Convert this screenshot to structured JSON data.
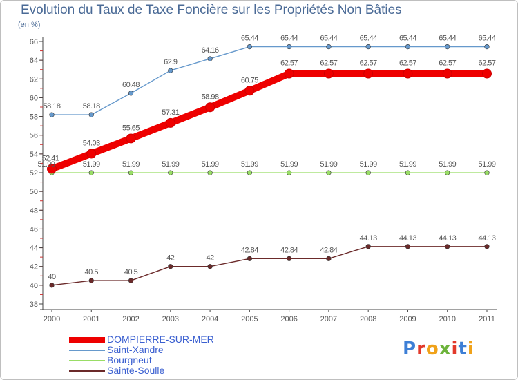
{
  "title": "Evolution du Taux de Taxe Foncière sur les Propriétés Non Bâties",
  "subtitle": "(en %)",
  "logo_text": "Proxiti",
  "logo_colors": [
    "#3d7fd6",
    "#e2392b",
    "#f0a21a",
    "#6cb33a",
    "#e2392b",
    "#3d7fd6",
    "#f0a21a"
  ],
  "chart_data": {
    "type": "line",
    "title": "Evolution du Taux de Taxe Foncière sur les Propriétés Non Bâties",
    "ylabel": "(en %)",
    "xlabel": "",
    "x": [
      "2000",
      "2001",
      "2002",
      "2003",
      "2004",
      "2005",
      "2006",
      "2007",
      "2008",
      "2009",
      "2010",
      "2011"
    ],
    "ylim": [
      38,
      66
    ],
    "yticks": [
      38,
      40,
      42,
      44,
      46,
      48,
      50,
      52,
      54,
      56,
      58,
      60,
      62,
      64,
      66
    ],
    "grid": false,
    "legend_position": "bottom-left",
    "series": [
      {
        "name": "DOMPIERRE-SUR-MER",
        "color": "#ee0000",
        "values": [
          52.41,
          54.03,
          55.65,
          57.31,
          58.98,
          60.75,
          62.57,
          62.57,
          62.57,
          62.57,
          62.57,
          62.57
        ],
        "labels": [
          "52.41",
          "54.03",
          "55.65",
          "57.31",
          "58.98",
          "60.75",
          "62.57",
          "62.57",
          "62.57",
          "62.57",
          "62.57",
          "62.57"
        ]
      },
      {
        "name": "Saint-Xandre",
        "color": "#6699cc",
        "values": [
          58.18,
          58.18,
          60.48,
          62.9,
          64.16,
          65.44,
          65.44,
          65.44,
          65.44,
          65.44,
          65.44,
          65.44
        ],
        "labels": [
          "58.18",
          "58.18",
          "60.48",
          "62.9",
          "64.16",
          "65.44",
          "65.44",
          "65.44",
          "65.44",
          "65.44",
          "65.44",
          "65.44"
        ]
      },
      {
        "name": "Bourgneuf",
        "color": "#99dd66",
        "values": [
          51.99,
          51.99,
          51.99,
          51.99,
          51.99,
          51.99,
          51.99,
          51.99,
          51.99,
          51.99,
          51.99,
          51.99
        ],
        "labels": [
          "51.99",
          "51.99",
          "51.99",
          "51.99",
          "51.99",
          "51.99",
          "51.99",
          "51.99",
          "51.99",
          "51.99",
          "51.99",
          "51.99"
        ]
      },
      {
        "name": "Sainte-Soulle",
        "color": "#6b2a2a",
        "values": [
          40,
          40.5,
          40.5,
          42,
          42,
          42.84,
          42.84,
          42.84,
          44.13,
          44.13,
          44.13,
          44.13
        ],
        "labels": [
          "40",
          "40.5",
          "40.5",
          "42",
          "42",
          "42.84",
          "42.84",
          "42.84",
          "44.13",
          "44.13",
          "44.13",
          "44.13"
        ]
      }
    ]
  }
}
